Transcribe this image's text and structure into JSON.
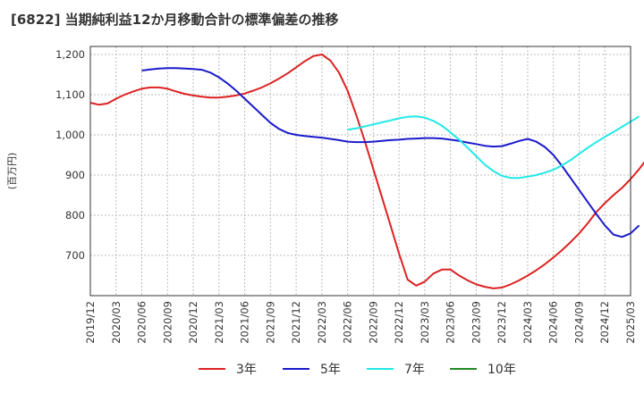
{
  "chart_data": {
    "type": "line",
    "title": "[6822]  当期純利益12か月移動合計の標準偏差の推移",
    "ylabel": "(百万円)",
    "xlabel": "",
    "ylim": [
      600,
      1220
    ],
    "yticks": [
      700,
      800,
      900,
      1000,
      1100,
      1200
    ],
    "ytick_labels": [
      "700",
      "800",
      "900",
      "1,000",
      "1,100",
      "1,200"
    ],
    "x_start": "2019-12",
    "x_end": "2025-03",
    "xtick_labels": [
      "2019/12",
      "2020/03",
      "2020/06",
      "2020/09",
      "2020/12",
      "2021/03",
      "2021/06",
      "2021/09",
      "2021/12",
      "2022/03",
      "2022/06",
      "2022/09",
      "2022/12",
      "2023/03",
      "2023/06",
      "2023/09",
      "2023/12",
      "2024/03",
      "2024/06",
      "2024/09",
      "2024/12",
      "2025/03"
    ],
    "grid": true,
    "legend_position": "bottom",
    "series": [
      {
        "name": "3年",
        "color": "#dd2222",
        "start_index": 0,
        "values": [
          1080,
          1075,
          1078,
          1090,
          1100,
          1108,
          1115,
          1118,
          1118,
          1115,
          1108,
          1102,
          1098,
          1095,
          1093,
          1093,
          1095,
          1098,
          1103,
          1110,
          1118,
          1128,
          1140,
          1153,
          1168,
          1183,
          1196,
          1200,
          1185,
          1155,
          1110,
          1050,
          985,
          915,
          845,
          775,
          705,
          640,
          625,
          635,
          655,
          665,
          665,
          650,
          638,
          628,
          622,
          618,
          620,
          628,
          638,
          650,
          663,
          678,
          695,
          713,
          733,
          755,
          780,
          808,
          830,
          850,
          868,
          890,
          915,
          943
        ]
      },
      {
        "name": "5年",
        "color": "#1a1acc",
        "start_index": 6,
        "values": [
          1160,
          1163,
          1165,
          1166,
          1166,
          1165,
          1164,
          1162,
          1155,
          1143,
          1128,
          1110,
          1090,
          1070,
          1050,
          1030,
          1015,
          1005,
          1000,
          997,
          995,
          993,
          990,
          987,
          983,
          982,
          982,
          983,
          985,
          987,
          988,
          990,
          991,
          992,
          992,
          991,
          988,
          985,
          981,
          977,
          973,
          971,
          972,
          978,
          985,
          990,
          983,
          970,
          950,
          923,
          893,
          863,
          833,
          803,
          775,
          752,
          746,
          755,
          775
        ]
      },
      {
        "name": "7年",
        "color": "#22e8e8",
        "start_index": 30,
        "values": [
          1013,
          1016,
          1021,
          1026,
          1031,
          1036,
          1041,
          1045,
          1046,
          1043,
          1035,
          1023,
          1006,
          988,
          968,
          947,
          926,
          910,
          898,
          893,
          893,
          896,
          900,
          906,
          913,
          924,
          937,
          953,
          968,
          982,
          995,
          1007,
          1020,
          1033,
          1046
        ]
      },
      {
        "name": "10年",
        "color": "#228822",
        "start_index": 0,
        "values": []
      }
    ]
  }
}
